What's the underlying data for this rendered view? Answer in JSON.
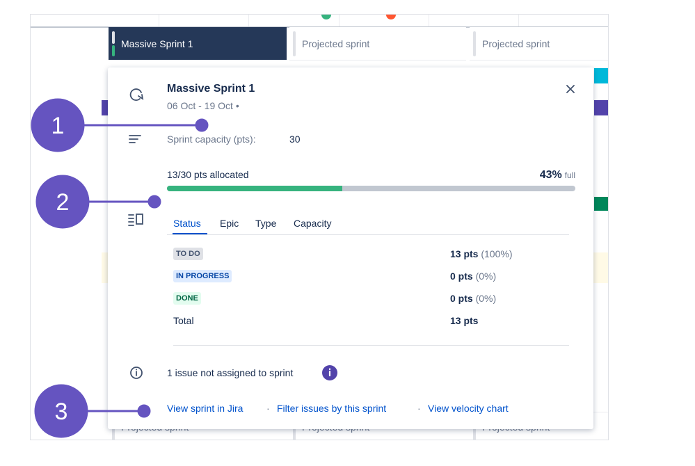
{
  "timeline": {
    "sprint_tabs": [
      "Massive Sprint 1",
      "Projected sprint",
      "Projected sprint"
    ],
    "bottom_tabs": [
      "Projected sprint",
      "Projected sprint",
      "Projected sprint"
    ]
  },
  "popup": {
    "title": "Massive Sprint 1",
    "dates": "06 Oct - 19 Oct •",
    "capacity_label": "Sprint capacity (pts):",
    "capacity_value": "30",
    "allocated": "13/30 pts allocated",
    "progress": {
      "value": 43,
      "label": "43%"
    },
    "progress_suffix": "full",
    "tabs": [
      "Status",
      "Epic",
      "Type",
      "Capacity"
    ],
    "rows": [
      {
        "status": "TO DO",
        "pts": "13 pts",
        "share": "(100%)"
      },
      {
        "status": "IN PROGRESS",
        "pts": "0 pts",
        "share": "(0%)"
      },
      {
        "status": "DONE",
        "pts": "0 pts",
        "share": "(0%)"
      },
      {
        "status": "Total",
        "pts": "13 pts"
      }
    ],
    "unassigned": "1 issue not assigned to sprint",
    "links": [
      "View sprint in Jira",
      "Filter issues by this sprint",
      "View velocity chart"
    ],
    "link_separator": "·"
  },
  "callouts": [
    "1",
    "2",
    "3"
  ]
}
